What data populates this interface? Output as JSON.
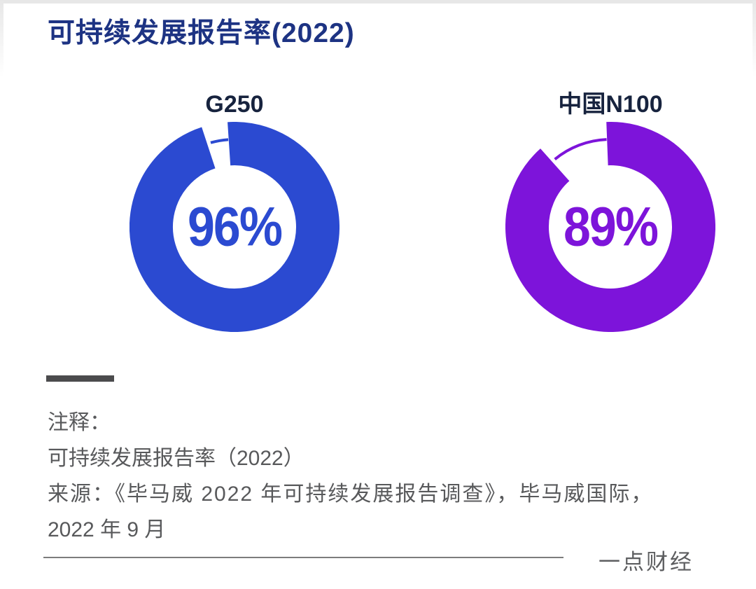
{
  "page": {
    "title": "可持续发展报告率(2022)"
  },
  "chart_data": {
    "type": "pie",
    "subtype": "donut",
    "title": "可持续发展报告率(2022)",
    "unit": "%",
    "series": [
      {
        "name": "G250",
        "value_pct": 96,
        "label": "96%",
        "color": "#2b4ad1",
        "gap_center_deg": 349
      },
      {
        "name": "中国N100",
        "value_pct": 89,
        "label": "89%",
        "color": "#7d14da",
        "gap_center_deg": 338
      }
    ],
    "legend_position": "labels-above-donuts",
    "source": "《毕马威 2022 年可持续发展报告调查》，毕马威国际，2022 年 9 月"
  },
  "notes": {
    "heading": "注释：",
    "line1": "可持续发展报告率（2022）",
    "line2": "来源：《毕马威 2022 年可持续发展报告调查》，毕马威国际，",
    "line3": "2022 年 9 月"
  },
  "footer": {
    "brand": "一点财经"
  },
  "colors": {
    "title_navy_blue": "#1d3383",
    "label_dark_navy": "#17233e",
    "donut_blue": "#2b4ad1",
    "donut_purple": "#7d14da",
    "note_gray": "#58595b",
    "divider_dark_gray": "#4b4b4d",
    "rule_gray": "#7c7c7c"
  }
}
